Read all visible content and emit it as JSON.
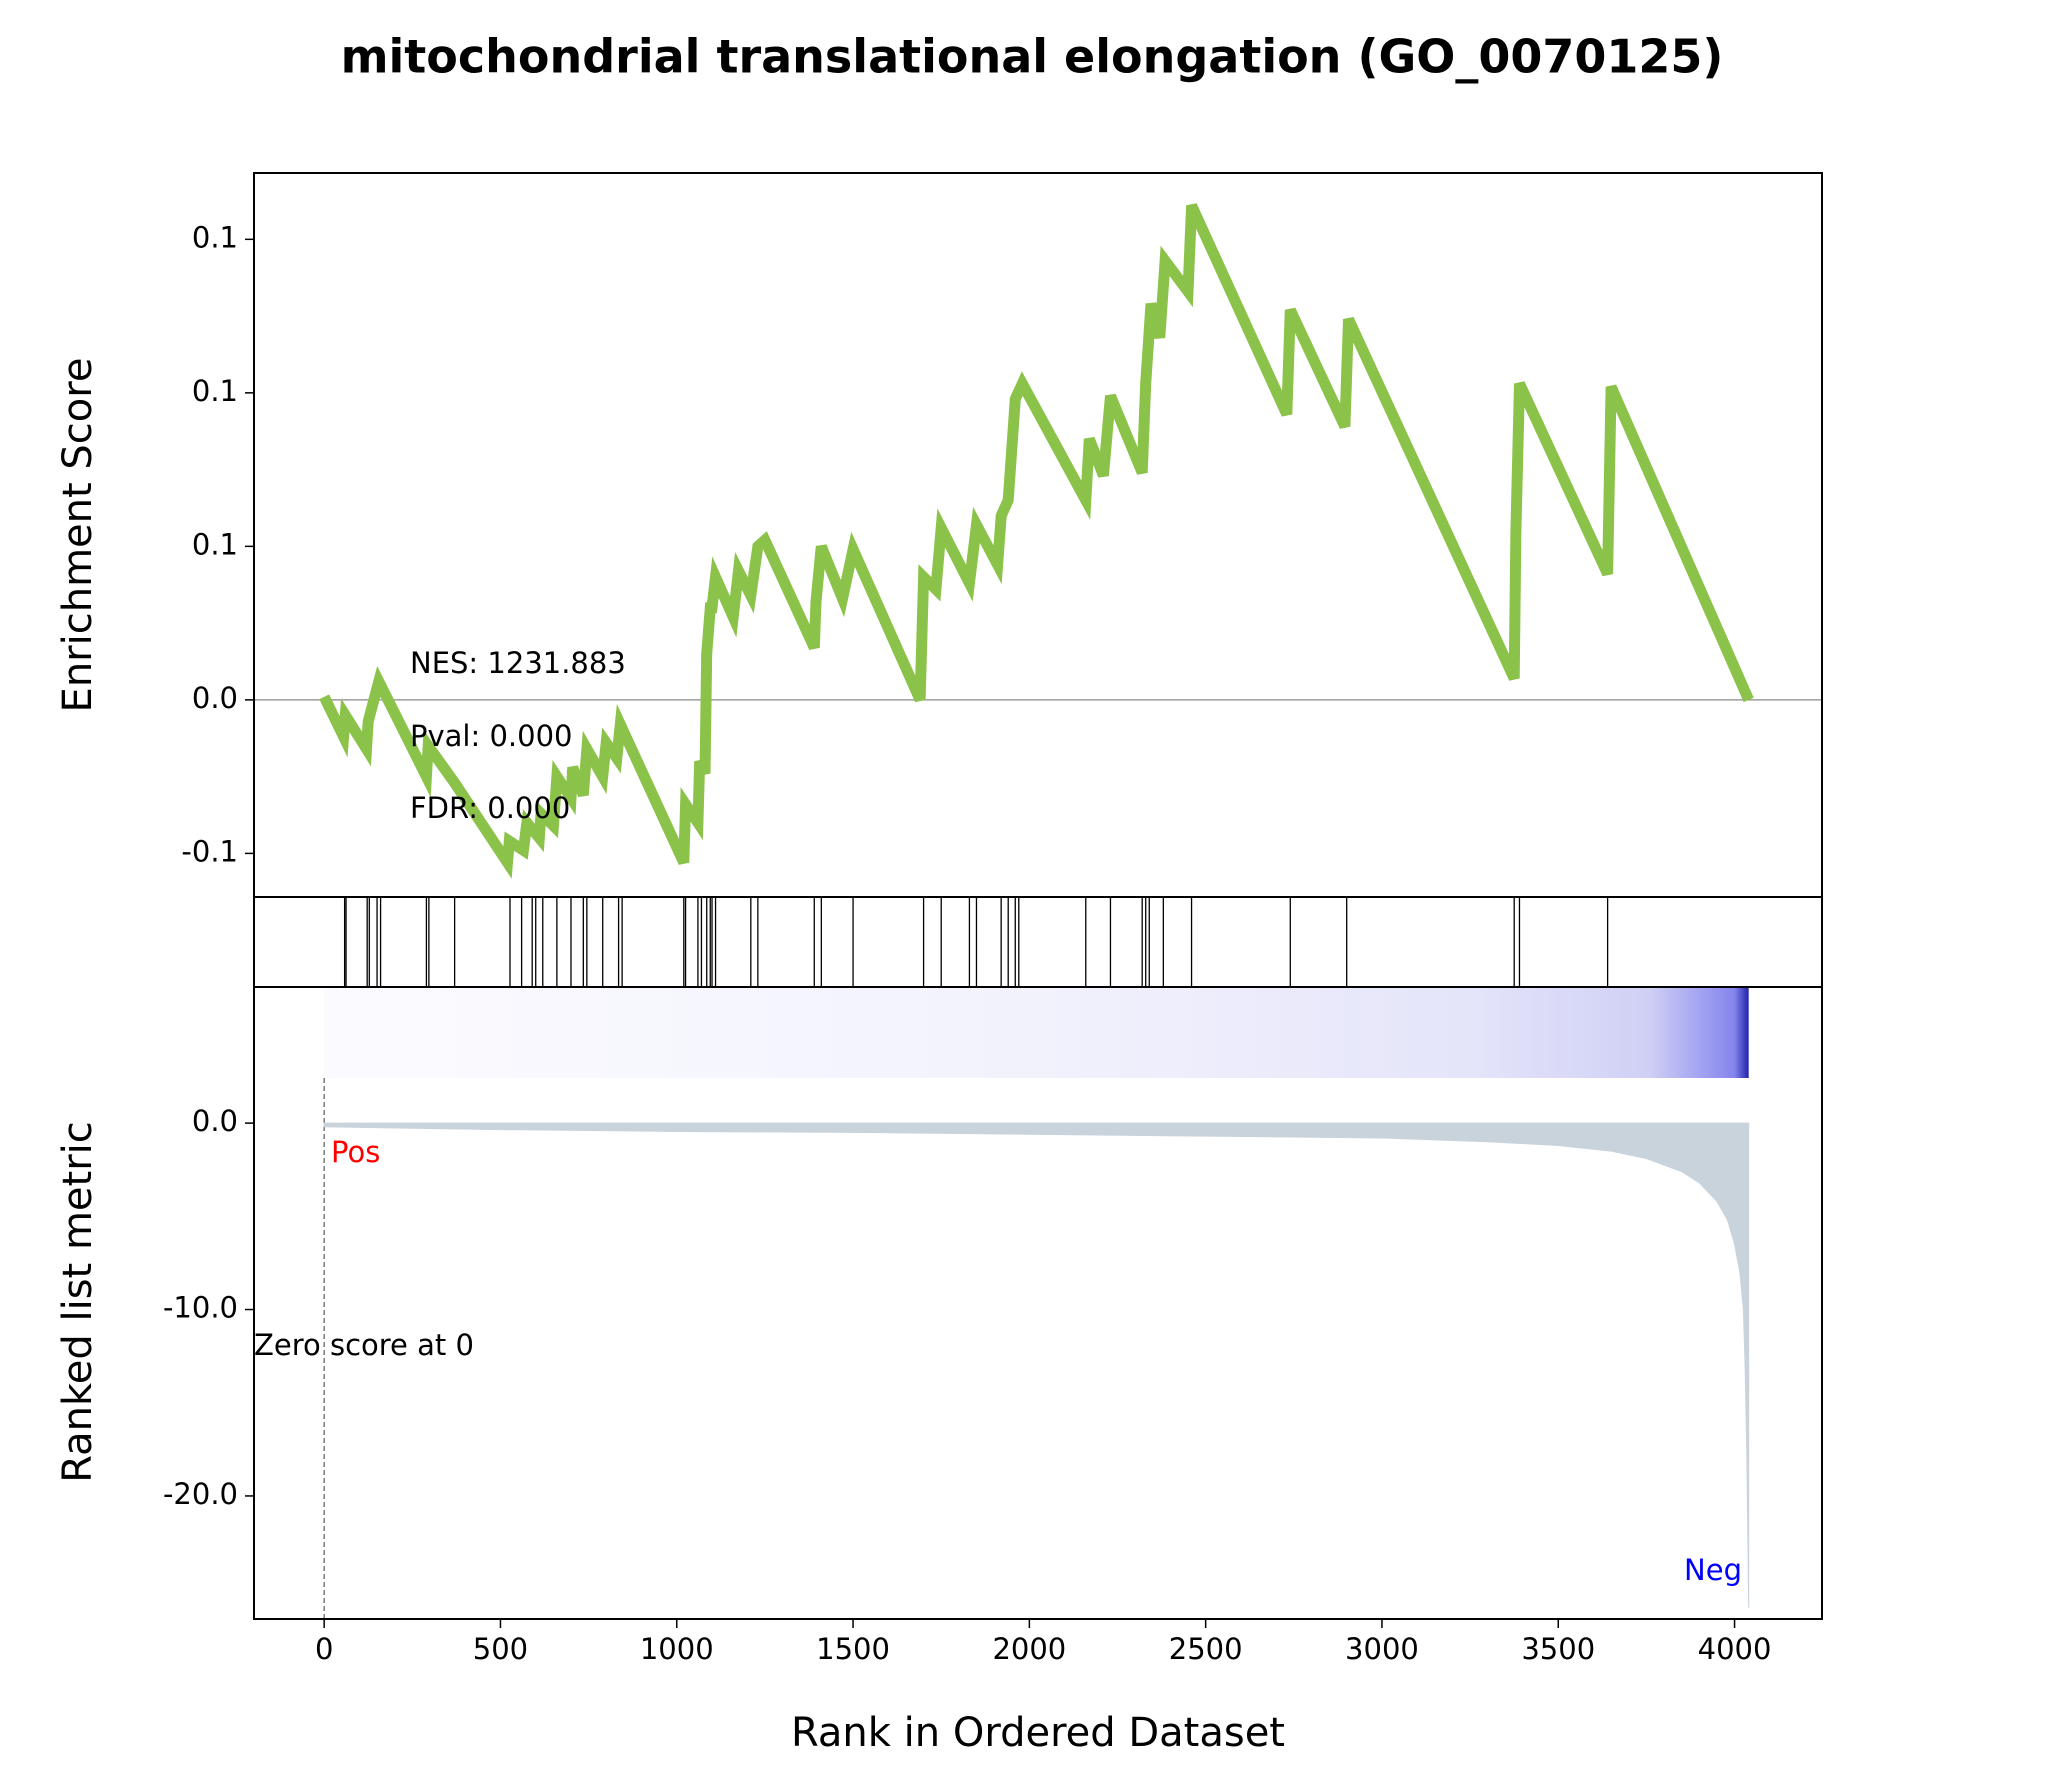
{
  "chart_data": [
    {
      "type": "line",
      "title": "mitochondrial translational elongation (GO_0070125)",
      "ylabel": "Enrichment Score",
      "color": "#8bc34a",
      "x": [
        0,
        55,
        60,
        120,
        125,
        155,
        290,
        295,
        370,
        520,
        525,
        565,
        575,
        610,
        615,
        650,
        660,
        700,
        705,
        735,
        745,
        790,
        800,
        830,
        840,
        1020,
        1025,
        1060,
        1065,
        1080,
        1085,
        1095,
        1100,
        1110,
        1160,
        1175,
        1210,
        1230,
        1250,
        1390,
        1395,
        1410,
        1470,
        1500,
        1690,
        1700,
        1735,
        1750,
        1830,
        1850,
        1910,
        1920,
        1940,
        1960,
        1980,
        2160,
        2170,
        2210,
        2230,
        2320,
        2330,
        2345,
        2370,
        2385,
        2450,
        2460,
        2730,
        2740,
        2895,
        2905,
        3375,
        3380,
        3390,
        3640,
        3650,
        4040
      ],
      "values": [
        0.001,
        -0.012,
        -0.005,
        -0.016,
        -0.007,
        0.006,
        -0.025,
        -0.015,
        -0.027,
        -0.053,
        -0.046,
        -0.049,
        -0.04,
        -0.045,
        -0.037,
        -0.041,
        -0.025,
        -0.032,
        -0.022,
        -0.031,
        -0.016,
        -0.025,
        -0.014,
        -0.019,
        -0.008,
        -0.053,
        -0.034,
        -0.04,
        -0.02,
        -0.024,
        0.015,
        0.03,
        0.03,
        0.04,
        0.027,
        0.042,
        0.034,
        0.05,
        0.052,
        0.017,
        0.032,
        0.05,
        0.033,
        0.049,
        0.0,
        0.04,
        0.036,
        0.056,
        0.038,
        0.057,
        0.044,
        0.06,
        0.065,
        0.098,
        0.103,
        0.065,
        0.085,
        0.073,
        0.099,
        0.074,
        0.103,
        0.129,
        0.118,
        0.143,
        0.133,
        0.161,
        0.093,
        0.127,
        0.089,
        0.124,
        0.007,
        0.055,
        0.103,
        0.041,
        0.102,
        0.0
      ],
      "xlim": [
        -199,
        4248
      ],
      "ylim": [
        -0.0642,
        0.1716
      ],
      "hline": 0,
      "yticks": [
        {
          "value": -0.05,
          "label": "-0.1"
        },
        {
          "value": 0,
          "label": "0.0"
        },
        {
          "value": 0.05,
          "label": "0.1"
        },
        {
          "value": 0.1,
          "label": "0.1"
        },
        {
          "value": 0.15,
          "label": "0.1"
        }
      ],
      "annotations": [
        "NES: 1231.883",
        "Pval: 0.000",
        "FDR: 0.000"
      ]
    },
    {
      "type": "rug",
      "x": [
        58,
        62,
        122,
        128,
        150,
        160,
        290,
        297,
        370,
        527,
        560,
        590,
        600,
        620,
        660,
        700,
        735,
        745,
        790,
        835,
        845,
        1020,
        1025,
        1060,
        1070,
        1085,
        1095,
        1100,
        1110,
        1210,
        1230,
        1390,
        1410,
        1500,
        1700,
        1750,
        1830,
        1850,
        1920,
        1940,
        1960,
        1970,
        2160,
        2230,
        2320,
        2330,
        2340,
        2380,
        2460,
        2740,
        2900,
        3375,
        3390,
        3640
      ],
      "xlim": [
        -199,
        4248
      ]
    },
    {
      "type": "area",
      "xlabel": "Rank in Ordered Dataset",
      "ylabel": "Ranked list metric",
      "color": "#c9d3dc",
      "x": [
        0,
        500,
        1000,
        1500,
        2000,
        2500,
        3000,
        3300,
        3500,
        3650,
        3750,
        3850,
        3900,
        3950,
        3980,
        4000,
        4015,
        4025,
        4030,
        4035,
        4040
      ],
      "values": [
        -0.2,
        -0.35,
        -0.45,
        -0.5,
        -0.6,
        -0.7,
        -0.8,
        -1.0,
        -1.2,
        -1.5,
        -1.9,
        -2.6,
        -3.2,
        -4.2,
        -5.2,
        -6.5,
        -8,
        -10,
        -13,
        -18,
        -26
      ],
      "xlim": [
        -199,
        4248
      ],
      "ylim": [
        -26.6,
        7.3
      ],
      "xticks": [
        0,
        500,
        1000,
        1500,
        2000,
        2500,
        3000,
        3500,
        4000
      ],
      "yticks": [
        {
          "value": 0,
          "label": "0.0"
        },
        {
          "value": -10,
          "label": "-10.0"
        },
        {
          "value": -20,
          "label": "-20.0"
        }
      ],
      "zero_score_rank": 0,
      "annotations": [
        "Pos",
        "Neg",
        "Zero score at 0"
      ]
    }
  ]
}
